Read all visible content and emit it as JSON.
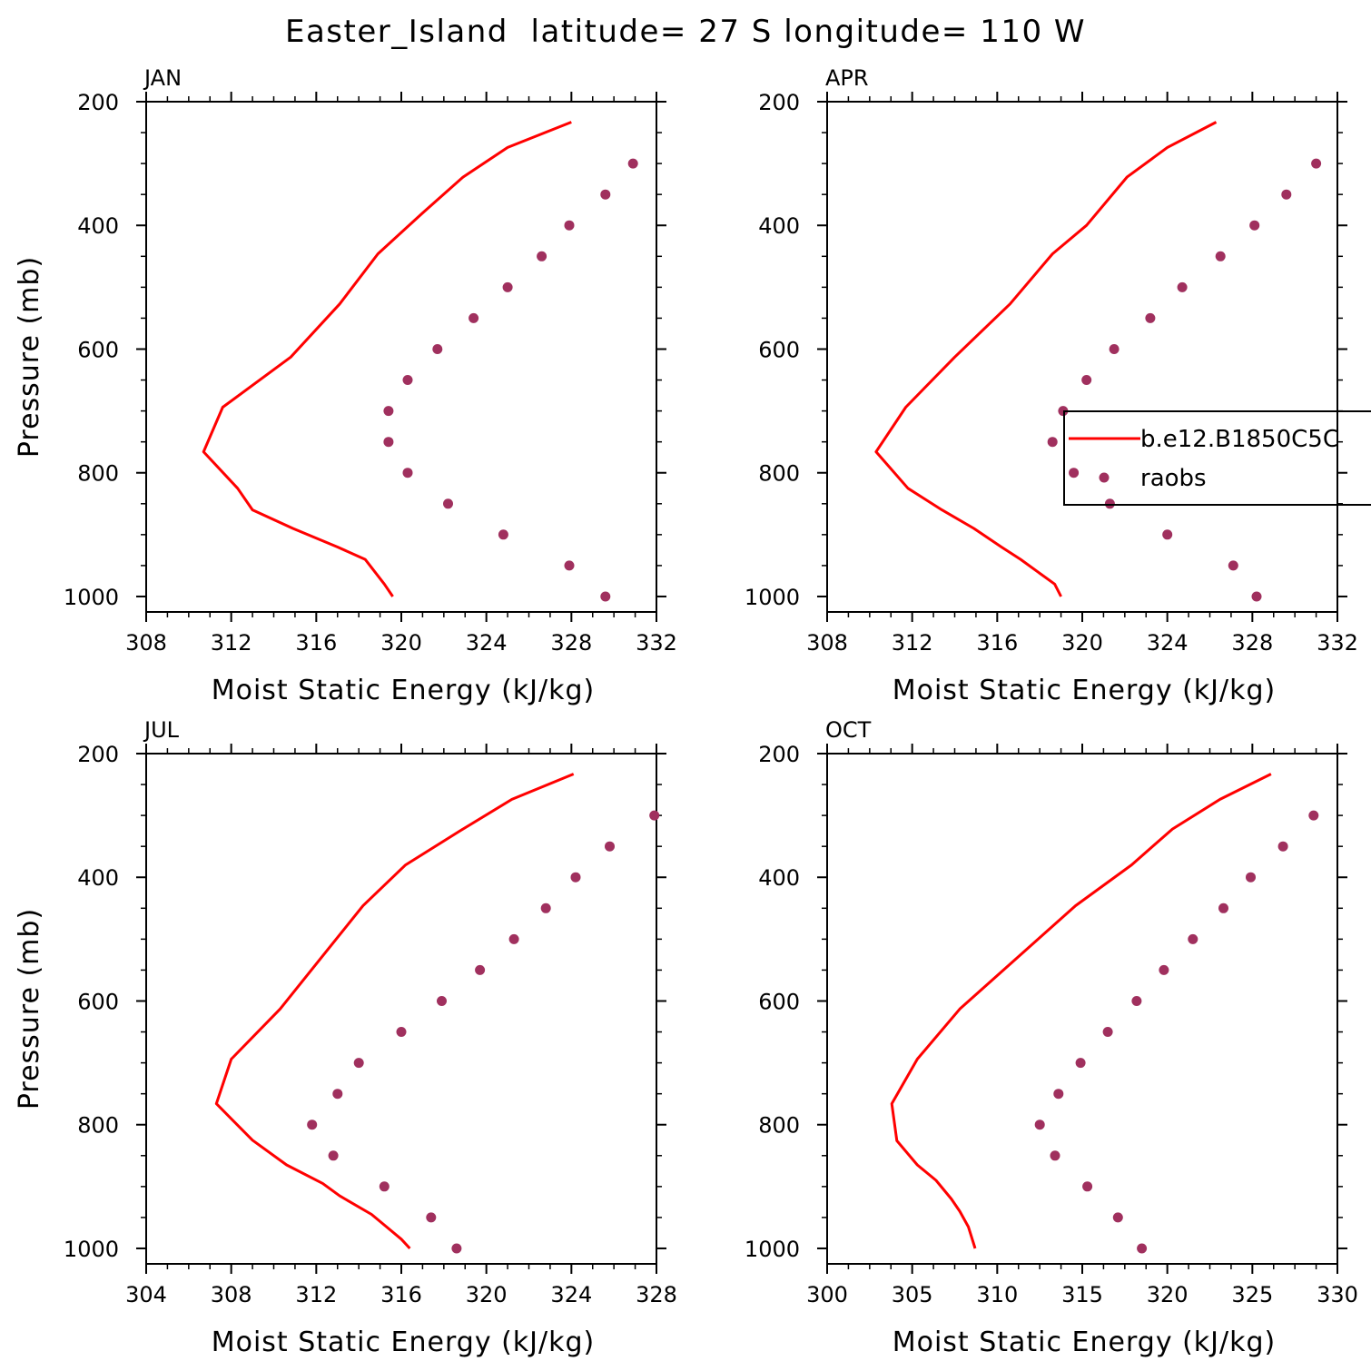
{
  "title": "Easter_Island  latitude= 27 S longitude= 110 W",
  "colors": {
    "model": "#ff0000",
    "obs": "#a0305e",
    "axis": "#000000"
  },
  "legend": {
    "model_label": "b.e12.B1850C5C",
    "obs_label": "raobs",
    "panel": 1
  },
  "chart_data": [
    {
      "type": "line",
      "month": "JAN",
      "xlabel": "Moist Static Energy (kJ/kg)",
      "ylabel": "Pressure (mb)",
      "xlim": [
        308,
        332
      ],
      "xticks": [
        "308",
        "312",
        "316",
        "320",
        "324",
        "328",
        "332"
      ],
      "ylim": [
        200,
        1025
      ],
      "yticks": [
        "200",
        "400",
        "600",
        "800",
        "1000"
      ],
      "series": [
        {
          "kind": "line",
          "x": [
            319.6,
            319.2,
            318.3,
            317.0,
            314.9,
            313.0,
            312.3,
            310.7,
            311.6,
            314.8,
            317.1,
            318.9,
            321.0,
            322.9,
            325.0,
            328.0
          ],
          "y": [
            1000,
            980,
            940,
            920,
            890,
            860,
            825,
            766,
            694,
            613,
            527,
            446,
            380,
            322,
            274,
            233
          ]
        },
        {
          "kind": "scatter",
          "x": [
            329.6,
            327.9,
            324.8,
            322.2,
            320.3,
            319.4,
            319.4,
            320.3,
            321.7,
            323.4,
            325.0,
            326.6,
            327.9,
            329.6,
            330.9
          ],
          "y": [
            1000,
            950,
            900,
            850,
            800,
            750,
            700,
            650,
            600,
            550,
            500,
            450,
            400,
            350,
            300
          ]
        }
      ]
    },
    {
      "type": "line",
      "month": "APR",
      "xlabel": "Moist Static Energy (kJ/kg)",
      "ylabel": "",
      "xlim": [
        308,
        332
      ],
      "xticks": [
        "308",
        "312",
        "316",
        "320",
        "324",
        "328",
        "332"
      ],
      "ylim": [
        200,
        1025
      ],
      "yticks": [
        "200",
        "400",
        "600",
        "800",
        "1000"
      ],
      "series": [
        {
          "kind": "line",
          "x": [
            319.0,
            318.7,
            317.9,
            317.1,
            316.2,
            314.9,
            313.4,
            311.8,
            310.3,
            311.7,
            314.0,
            316.6,
            318.6,
            320.2,
            322.1,
            324.0,
            326.3
          ],
          "y": [
            1000,
            980,
            960,
            940,
            920,
            890,
            860,
            825,
            766,
            694,
            613,
            527,
            446,
            400,
            322,
            274,
            233
          ]
        },
        {
          "kind": "scatter",
          "x": [
            328.2,
            327.1,
            324.0,
            321.3,
            319.6,
            318.6,
            319.1,
            320.2,
            321.5,
            323.2,
            324.7,
            326.5,
            328.1,
            329.6,
            331.0
          ],
          "y": [
            1000,
            950,
            900,
            850,
            800,
            750,
            700,
            650,
            600,
            550,
            500,
            450,
            400,
            350,
            300
          ]
        }
      ]
    },
    {
      "type": "line",
      "month": "JUL",
      "xlabel": "Moist Static Energy (kJ/kg)",
      "ylabel": "Pressure (mb)",
      "xlim": [
        304,
        328
      ],
      "xticks": [
        "304",
        "308",
        "312",
        "316",
        "320",
        "324",
        "328"
      ],
      "ylim": [
        200,
        1025
      ],
      "yticks": [
        "200",
        "400",
        "600",
        "800",
        "1000"
      ],
      "series": [
        {
          "kind": "line",
          "x": [
            316.4,
            316.0,
            315.3,
            314.6,
            313.1,
            312.3,
            310.6,
            309.0,
            307.3,
            308.0,
            310.3,
            312.3,
            314.2,
            316.2,
            318.9,
            321.2,
            324.1
          ],
          "y": [
            1000,
            985,
            965,
            945,
            915,
            895,
            865,
            825,
            766,
            694,
            613,
            527,
            446,
            380,
            322,
            274,
            233
          ]
        },
        {
          "kind": "scatter",
          "x": [
            318.6,
            317.4,
            315.2,
            312.8,
            311.8,
            313.0,
            314.0,
            316.0,
            317.9,
            319.7,
            321.3,
            322.8,
            324.2,
            325.8,
            327.9
          ],
          "y": [
            1000,
            950,
            900,
            850,
            800,
            750,
            700,
            650,
            600,
            550,
            500,
            450,
            400,
            350,
            300
          ]
        }
      ]
    },
    {
      "type": "line",
      "month": "OCT",
      "xlabel": "Moist Static Energy (kJ/kg)",
      "ylabel": "",
      "xlim": [
        300,
        330
      ],
      "xticks": [
        "300",
        "305",
        "310",
        "315",
        "320",
        "325",
        "330"
      ],
      "ylim": [
        200,
        1025
      ],
      "yticks": [
        "200",
        "400",
        "600",
        "800",
        "1000"
      ],
      "series": [
        {
          "kind": "line",
          "x": [
            308.7,
            308.3,
            307.8,
            307.3,
            306.4,
            305.3,
            304.1,
            303.8,
            305.3,
            307.8,
            311.3,
            314.6,
            317.9,
            320.3,
            323.1,
            326.1
          ],
          "y": [
            1000,
            965,
            940,
            920,
            890,
            865,
            826,
            766,
            694,
            613,
            527,
            446,
            380,
            322,
            274,
            233
          ]
        },
        {
          "kind": "scatter",
          "x": [
            318.5,
            317.1,
            315.3,
            313.4,
            312.5,
            313.6,
            314.9,
            316.5,
            318.2,
            319.8,
            321.5,
            323.3,
            324.9,
            326.8,
            328.6
          ],
          "y": [
            1000,
            950,
            900,
            850,
            800,
            750,
            700,
            650,
            600,
            550,
            500,
            450,
            400,
            350,
            300
          ]
        }
      ]
    }
  ]
}
